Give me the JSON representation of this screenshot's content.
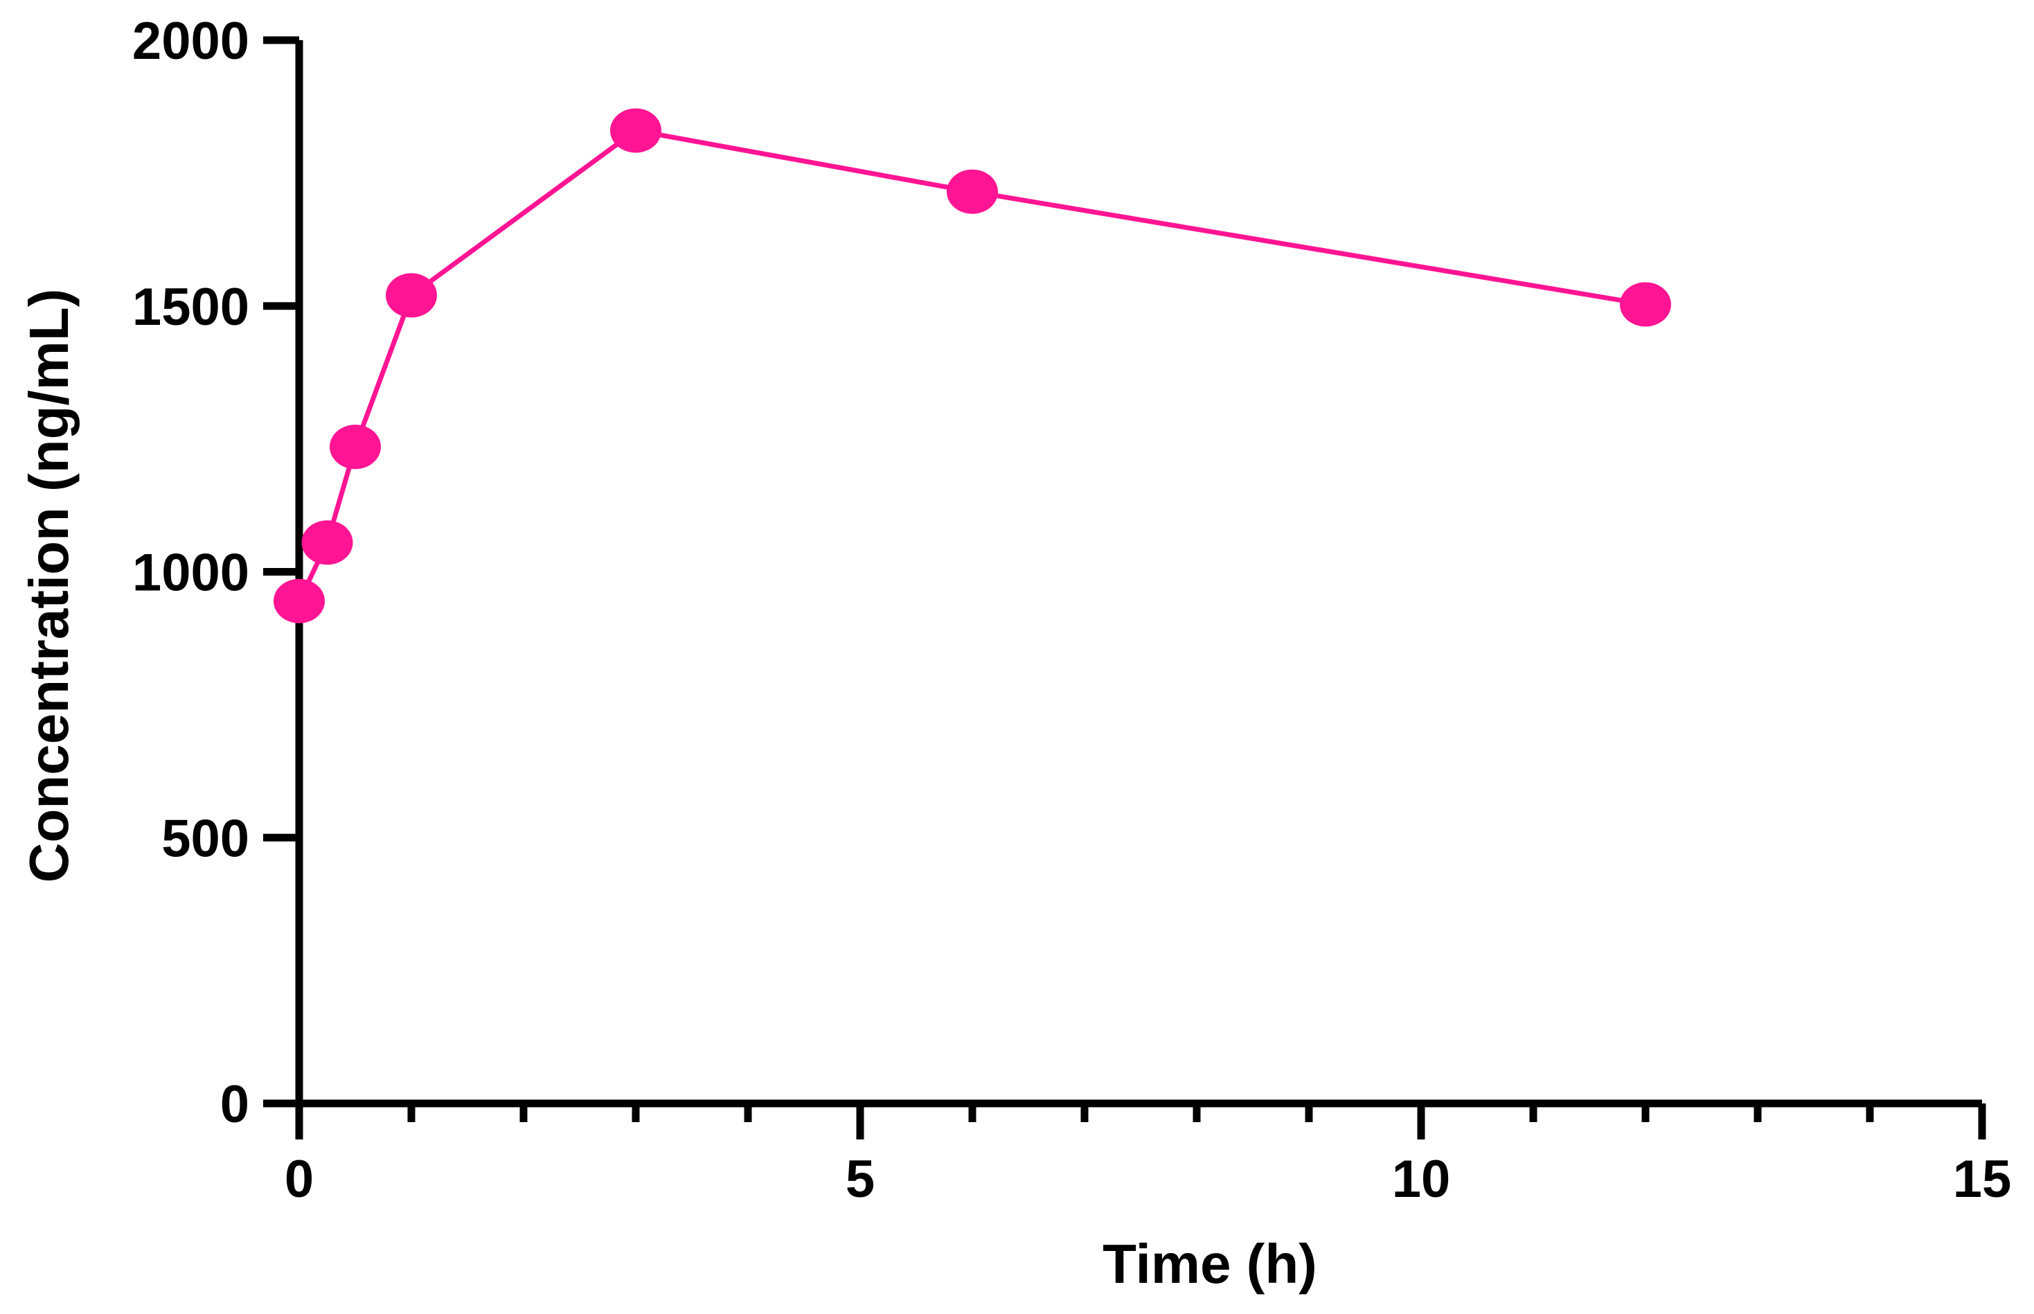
{
  "chart_data": {
    "type": "line",
    "title": "",
    "xlabel": "Time (h)",
    "ylabel": "Concentration (ng/mL)",
    "xlim": [
      0,
      15
    ],
    "ylim": [
      0,
      2000
    ],
    "x_ticks": [
      0,
      5,
      10,
      15
    ],
    "x_tick_labels": [
      "0",
      "5",
      "10",
      "15"
    ],
    "x_minor_step": 1,
    "y_ticks": [
      0,
      500,
      1000,
      1500,
      2000
    ],
    "y_tick_labels": [
      "0",
      "500",
      "1000",
      "1500",
      "2000"
    ],
    "grid": false,
    "legend": "none",
    "series": [
      {
        "color": "#ff1493",
        "x": [
          0,
          0.25,
          0.5,
          1,
          3,
          6,
          12
        ],
        "y": [
          945,
          1055,
          1235,
          1520,
          1830,
          1715,
          1503
        ]
      }
    ]
  }
}
